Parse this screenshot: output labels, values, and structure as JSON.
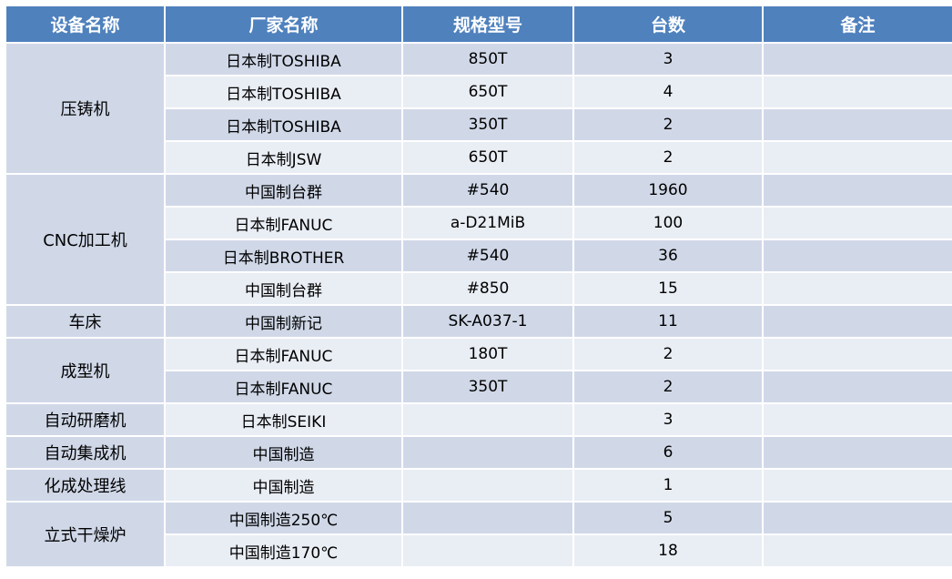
{
  "headers": [
    "设备名称",
    "厂家名称",
    "规格型号",
    "台数",
    "备注"
  ],
  "groups": [
    {
      "category": "压铸机",
      "rows": [
        [
          "日本制TOSHIBA",
          "850T",
          "3",
          ""
        ],
        [
          "日本制TOSHIBA",
          "650T",
          "4",
          ""
        ],
        [
          "日本制TOSHIBA",
          "350T",
          "2",
          ""
        ],
        [
          "日本制JSW",
          "650T",
          "2",
          ""
        ]
      ]
    },
    {
      "category": "CNC加工机",
      "rows": [
        [
          "中国制台群",
          "#540",
          "1960",
          ""
        ],
        [
          "日本制FANUC",
          "a-D21MiB",
          "100",
          ""
        ],
        [
          "日本制BROTHER",
          "#540",
          "36",
          ""
        ],
        [
          "中国制台群",
          "#850",
          "15",
          ""
        ]
      ]
    },
    {
      "category": "车床",
      "rows": [
        [
          "中国制新记",
          "SK-A037-1",
          "11",
          ""
        ]
      ]
    },
    {
      "category": "成型机",
      "rows": [
        [
          "日本制FANUC",
          "180T",
          "2",
          ""
        ],
        [
          "日本制FANUC",
          "350T",
          "2",
          ""
        ]
      ]
    },
    {
      "category": "自动研磨机",
      "rows": [
        [
          "日本制SEIKI",
          "",
          "3",
          ""
        ]
      ]
    },
    {
      "category": "自动集成机",
      "rows": [
        [
          "中国制造",
          "",
          "6",
          ""
        ]
      ]
    },
    {
      "category": "化成处理线",
      "rows": [
        [
          "中国制造",
          "",
          "1",
          ""
        ]
      ]
    },
    {
      "category": "立式干燥炉",
      "rows": [
        [
          "中国制造250℃",
          "",
          "5",
          ""
        ],
        [
          "中国制造170℃",
          "",
          "18",
          ""
        ]
      ]
    }
  ]
}
